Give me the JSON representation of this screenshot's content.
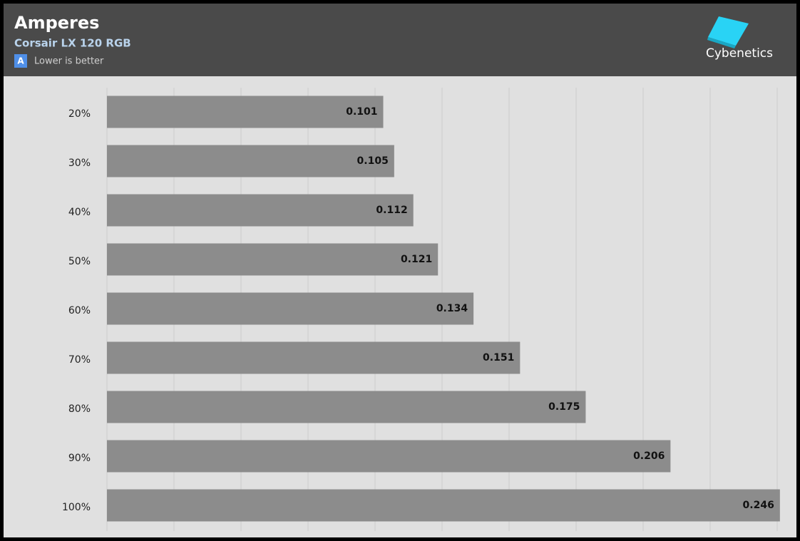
{
  "chart_data": {
    "type": "bar",
    "orientation": "horizontal",
    "title": "Amperes",
    "subtitle": "Corsair LX 120 RGB",
    "badge": "A",
    "note": "Lower is better",
    "brand": "Cybenetics",
    "categories": [
      "20%",
      "30%",
      "40%",
      "50%",
      "60%",
      "70%",
      "80%",
      "90%",
      "100%"
    ],
    "values": [
      0.101,
      0.105,
      0.112,
      0.121,
      0.134,
      0.151,
      0.175,
      0.206,
      0.246
    ],
    "color": "#8c8c8c",
    "xlim": [
      0,
      0.245
    ],
    "xgrid": [
      0,
      0.0245,
      0.049,
      0.0735,
      0.098,
      0.1225,
      0.147,
      0.1715,
      0.196,
      0.2205,
      0.245
    ],
    "grid": true
  }
}
